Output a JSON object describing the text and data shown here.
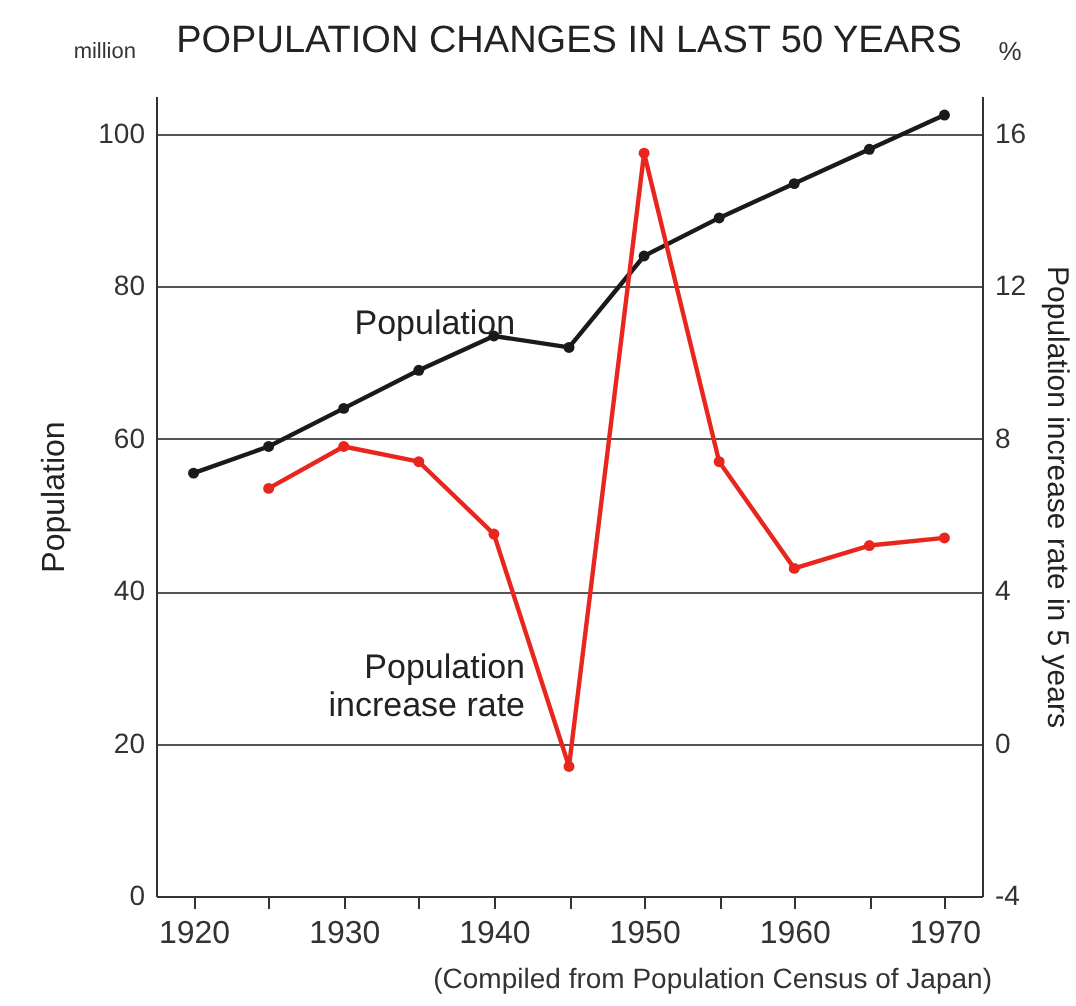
{
  "chart_data": {
    "type": "line",
    "title": "POPULATION CHANGES IN LAST 50 YEARS",
    "ylabel": "Population",
    "y2label": "Population increase rate in 5 years",
    "x": [
      1920,
      1925,
      1930,
      1935,
      1940,
      1945,
      1950,
      1955,
      1960,
      1965,
      1970
    ],
    "series": [
      {
        "name": "Population",
        "color": "#1a1a1a",
        "values": [
          55.5,
          59.0,
          64.0,
          69.0,
          73.5,
          72.0,
          84.0,
          89.0,
          93.5,
          98.0,
          102.5
        ]
      },
      {
        "name": "Population\nincrease rate",
        "color": "#e8261e",
        "axis": "y2",
        "values": [
          null,
          6.7,
          7.8,
          7.4,
          5.5,
          -0.6,
          15.5,
          7.4,
          4.6,
          5.2,
          5.4
        ]
      }
    ],
    "xlim": [
      1917.5,
      1972.5
    ],
    "xticks": [
      1920,
      {
        "value": 1925,
        "label": null
      },
      1930,
      {
        "value": 1935,
        "label": null
      },
      1940,
      {
        "value": 1945,
        "label": null
      },
      1950,
      {
        "value": 1955,
        "label": null
      },
      1960,
      {
        "value": 1965,
        "label": null
      },
      1970
    ],
    "ylim": [
      0,
      105
    ],
    "yticks": [
      0,
      20,
      40,
      60,
      80,
      100
    ],
    "y2lim": [
      -4,
      17
    ],
    "y2ticks": [
      -4,
      0,
      4,
      8,
      12,
      16
    ],
    "grid": "y",
    "marker": "circle",
    "line_style": "solid",
    "annotations": [
      "million",
      "%",
      "(Compiled from Population Census of Japan)"
    ]
  }
}
